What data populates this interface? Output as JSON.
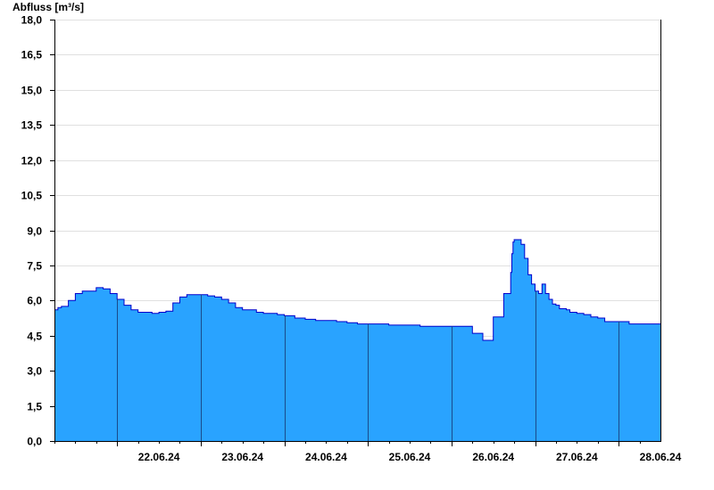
{
  "chart_data": {
    "type": "area",
    "ylabel": "Abfluss [m³/s]",
    "xlabel": "",
    "title": "",
    "ylim": [
      0,
      18
    ],
    "xlim": [
      "2024-06-21T06:00",
      "2024-06-28T12:00"
    ],
    "yticks": [
      "0,0",
      "1,5",
      "3,0",
      "4,5",
      "6,0",
      "7,5",
      "9,0",
      "10,5",
      "12,0",
      "13,5",
      "15,0",
      "16,5",
      "18,0"
    ],
    "xticks": [
      "22.06.24",
      "23.06.24",
      "24.06.24",
      "25.06.24",
      "26.06.24",
      "27.06.24",
      "28.06.24"
    ],
    "grid": true,
    "colors": {
      "fill": "#29a3ff",
      "line": "#0000cc",
      "grid": "#e0e0e0",
      "axis": "#000000"
    },
    "series": [
      {
        "x": [
          "2024-06-21T06:00",
          "2024-06-21T07:00",
          "2024-06-21T08:00",
          "2024-06-21T10:00",
          "2024-06-21T12:00",
          "2024-06-21T14:00",
          "2024-06-21T16:00",
          "2024-06-21T18:00",
          "2024-06-21T20:00",
          "2024-06-21T22:00",
          "2024-06-22T00:00",
          "2024-06-22T02:00",
          "2024-06-22T04:00",
          "2024-06-22T06:00",
          "2024-06-22T08:00",
          "2024-06-22T10:00",
          "2024-06-22T12:00",
          "2024-06-22T14:00",
          "2024-06-22T16:00",
          "2024-06-22T18:00",
          "2024-06-22T20:00",
          "2024-06-22T22:00",
          "2024-06-23T00:00",
          "2024-06-23T02:00",
          "2024-06-23T04:00",
          "2024-06-23T06:00",
          "2024-06-23T08:00",
          "2024-06-23T10:00",
          "2024-06-23T12:00",
          "2024-06-23T14:00",
          "2024-06-23T16:00",
          "2024-06-23T18:00",
          "2024-06-23T20:00",
          "2024-06-23T22:00",
          "2024-06-24T00:00",
          "2024-06-24T03:00",
          "2024-06-24T06:00",
          "2024-06-24T09:00",
          "2024-06-24T12:00",
          "2024-06-24T15:00",
          "2024-06-24T18:00",
          "2024-06-24T21:00",
          "2024-06-25T00:00",
          "2024-06-25T03:00",
          "2024-06-25T06:00",
          "2024-06-25T09:00",
          "2024-06-25T12:00",
          "2024-06-25T15:00",
          "2024-06-25T18:00",
          "2024-06-25T21:00",
          "2024-06-26T00:00",
          "2024-06-26T03:00",
          "2024-06-26T06:00",
          "2024-06-26T09:00",
          "2024-06-26T12:00",
          "2024-06-26T15:00",
          "2024-06-26T17:00",
          "2024-06-26T17:20",
          "2024-06-26T17:40",
          "2024-06-26T18:00",
          "2024-06-26T19:00",
          "2024-06-26T20:00",
          "2024-06-26T21:00",
          "2024-06-26T22:00",
          "2024-06-26T23:00",
          "2024-06-27T00:00",
          "2024-06-27T01:00",
          "2024-06-27T02:00",
          "2024-06-27T03:00",
          "2024-06-27T04:00",
          "2024-06-27T05:00",
          "2024-06-27T06:00",
          "2024-06-27T07:00",
          "2024-06-27T08:00",
          "2024-06-27T09:00",
          "2024-06-27T10:00",
          "2024-06-27T12:00",
          "2024-06-27T14:00",
          "2024-06-27T16:00",
          "2024-06-27T18:00",
          "2024-06-27T20:00",
          "2024-06-27T22:00",
          "2024-06-28T00:00",
          "2024-06-28T03:00",
          "2024-06-28T06:00",
          "2024-06-28T09:00",
          "2024-06-28T12:00"
        ],
        "y": [
          5.6,
          5.7,
          5.75,
          6.0,
          6.3,
          6.4,
          6.4,
          6.55,
          6.5,
          6.3,
          6.05,
          5.8,
          5.6,
          5.5,
          5.5,
          5.45,
          5.5,
          5.55,
          5.9,
          6.15,
          6.25,
          6.25,
          6.25,
          6.2,
          6.15,
          6.05,
          5.9,
          5.7,
          5.6,
          5.6,
          5.5,
          5.45,
          5.45,
          5.4,
          5.35,
          5.25,
          5.2,
          5.15,
          5.15,
          5.1,
          5.05,
          5.0,
          5.0,
          5.0,
          4.95,
          4.95,
          4.95,
          4.9,
          4.9,
          4.9,
          4.9,
          4.9,
          4.6,
          4.3,
          5.3,
          6.3,
          7.2,
          8.0,
          8.5,
          8.6,
          8.6,
          8.4,
          7.8,
          7.1,
          6.7,
          6.4,
          6.3,
          6.7,
          6.3,
          6.05,
          5.85,
          5.8,
          5.65,
          5.65,
          5.6,
          5.5,
          5.45,
          5.4,
          5.3,
          5.25,
          5.1,
          5.1,
          5.1,
          5.0,
          5.0,
          5.0,
          5.0
        ]
      }
    ]
  }
}
